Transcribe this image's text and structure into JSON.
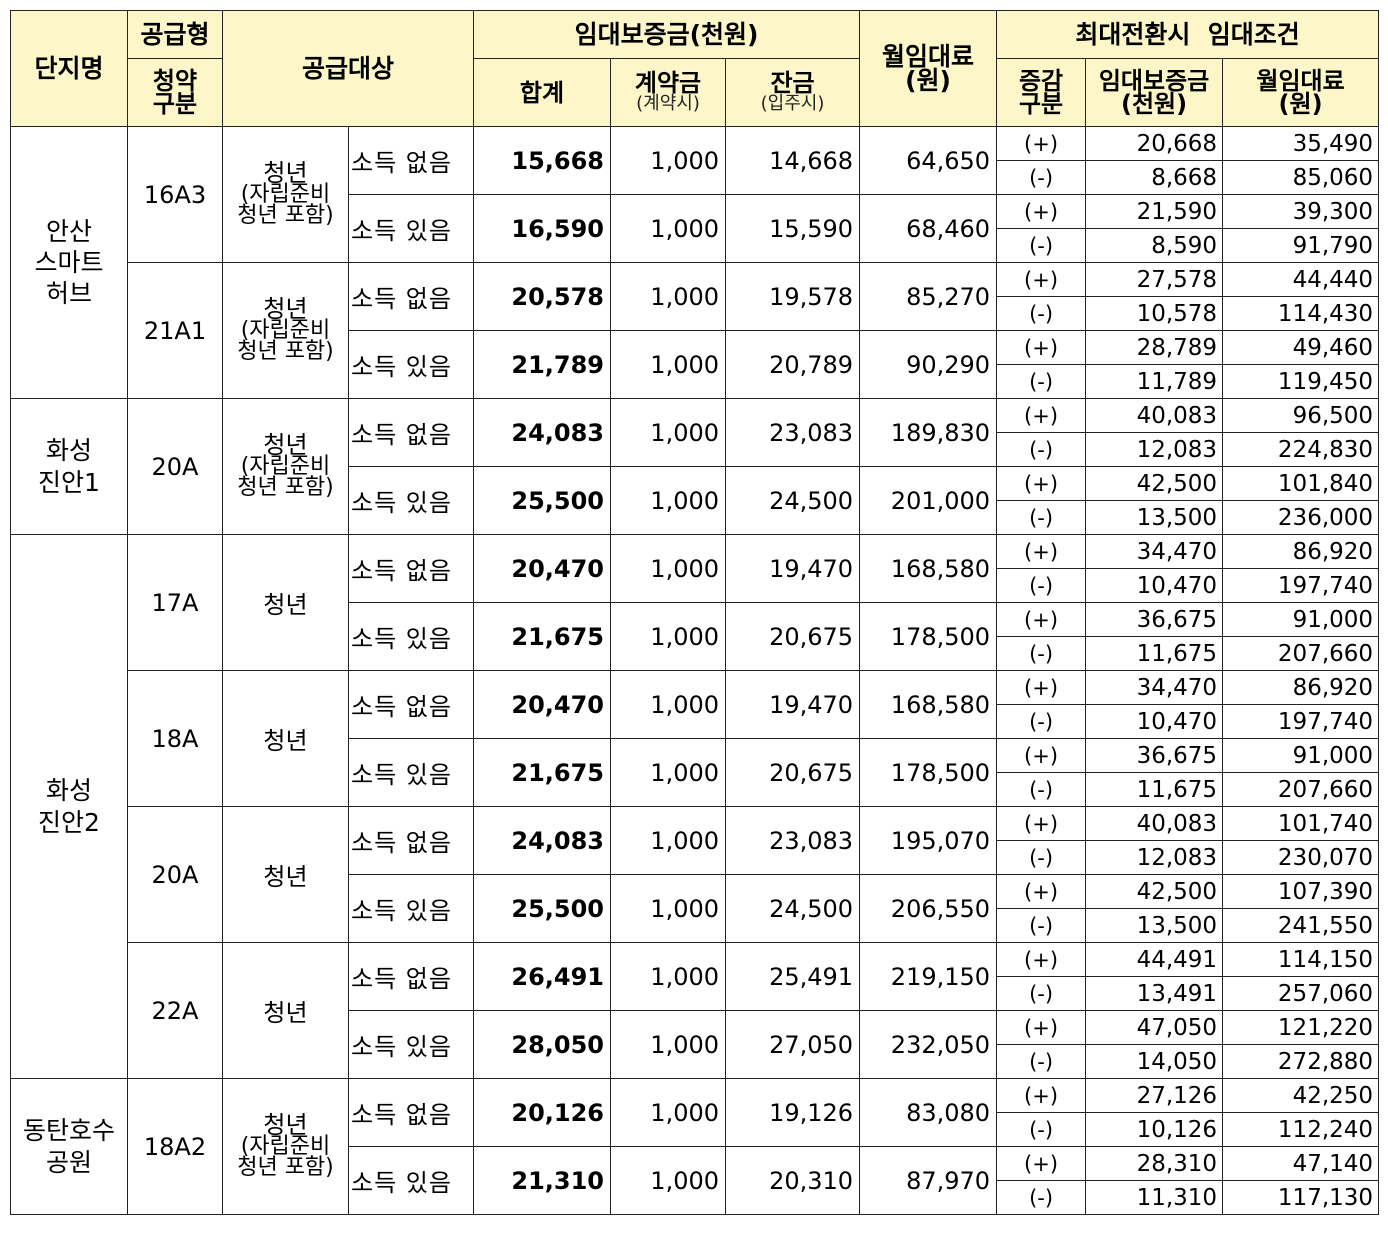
{
  "header": {
    "complex": "단지명",
    "supply_type_top": "공급형",
    "supply_type_bottom": "청약\n구분",
    "target": "공급대상",
    "deposit_group": "임대보증금(천원)",
    "total": "합계",
    "contract": "계약금",
    "contract_note": "(계약시)",
    "balance": "잔금",
    "balance_note": "(입주시)",
    "monthly": "월임대료\n(원)",
    "max_group": "최대전환시  임대조건",
    "change": "증감\n구분",
    "max_deposit": "임대보증금\n(천원)",
    "max_monthly": "월임대료\n(원)"
  },
  "targets": {
    "youth_incl_l1": "청년",
    "youth_incl_l2": "(자립준비",
    "youth_incl_l3": "청년 포함)",
    "youth": "청년"
  },
  "income": {
    "none": "소득 없음",
    "has": "소득 있음"
  },
  "signs": {
    "plus": "(+)",
    "minus": "(-)"
  },
  "complexes": [
    {
      "name": "안산\n스마트\n허브",
      "types": [
        {
          "type": "16A3",
          "target": "incl",
          "rows": [
            {
              "income": "none",
              "total": "15,668",
              "contract": "1,000",
              "balance": "14,668",
              "monthly": "64,650",
              "plus": [
                "20,668",
                "35,490"
              ],
              "minus": [
                "8,668",
                "85,060"
              ]
            },
            {
              "income": "has",
              "total": "16,590",
              "contract": "1,000",
              "balance": "15,590",
              "monthly": "68,460",
              "plus": [
                "21,590",
                "39,300"
              ],
              "minus": [
                "8,590",
                "91,790"
              ]
            }
          ]
        },
        {
          "type": "21A1",
          "target": "incl",
          "rows": [
            {
              "income": "none",
              "total": "20,578",
              "contract": "1,000",
              "balance": "19,578",
              "monthly": "85,270",
              "plus": [
                "27,578",
                "44,440"
              ],
              "minus": [
                "10,578",
                "114,430"
              ]
            },
            {
              "income": "has",
              "total": "21,789",
              "contract": "1,000",
              "balance": "20,789",
              "monthly": "90,290",
              "plus": [
                "28,789",
                "49,460"
              ],
              "minus": [
                "11,789",
                "119,450"
              ]
            }
          ]
        }
      ]
    },
    {
      "name": "화성\n진안1",
      "types": [
        {
          "type": "20A",
          "target": "incl",
          "rows": [
            {
              "income": "none",
              "total": "24,083",
              "contract": "1,000",
              "balance": "23,083",
              "monthly": "189,830",
              "plus": [
                "40,083",
                "96,500"
              ],
              "minus": [
                "12,083",
                "224,830"
              ]
            },
            {
              "income": "has",
              "total": "25,500",
              "contract": "1,000",
              "balance": "24,500",
              "monthly": "201,000",
              "plus": [
                "42,500",
                "101,840"
              ],
              "minus": [
                "13,500",
                "236,000"
              ]
            }
          ]
        }
      ]
    },
    {
      "name": "화성\n진안2",
      "types": [
        {
          "type": "17A",
          "target": "youth",
          "rows": [
            {
              "income": "none",
              "total": "20,470",
              "contract": "1,000",
              "balance": "19,470",
              "monthly": "168,580",
              "plus": [
                "34,470",
                "86,920"
              ],
              "minus": [
                "10,470",
                "197,740"
              ]
            },
            {
              "income": "has",
              "total": "21,675",
              "contract": "1,000",
              "balance": "20,675",
              "monthly": "178,500",
              "plus": [
                "36,675",
                "91,000"
              ],
              "minus": [
                "11,675",
                "207,660"
              ]
            }
          ]
        },
        {
          "type": "18A",
          "target": "youth",
          "rows": [
            {
              "income": "none",
              "total": "20,470",
              "contract": "1,000",
              "balance": "19,470",
              "monthly": "168,580",
              "plus": [
                "34,470",
                "86,920"
              ],
              "minus": [
                "10,470",
                "197,740"
              ]
            },
            {
              "income": "has",
              "total": "21,675",
              "contract": "1,000",
              "balance": "20,675",
              "monthly": "178,500",
              "plus": [
                "36,675",
                "91,000"
              ],
              "minus": [
                "11,675",
                "207,660"
              ]
            }
          ]
        },
        {
          "type": "20A",
          "target": "youth",
          "rows": [
            {
              "income": "none",
              "total": "24,083",
              "contract": "1,000",
              "balance": "23,083",
              "monthly": "195,070",
              "plus": [
                "40,083",
                "101,740"
              ],
              "minus": [
                "12,083",
                "230,070"
              ]
            },
            {
              "income": "has",
              "total": "25,500",
              "contract": "1,000",
              "balance": "24,500",
              "monthly": "206,550",
              "plus": [
                "42,500",
                "107,390"
              ],
              "minus": [
                "13,500",
                "241,550"
              ]
            }
          ]
        },
        {
          "type": "22A",
          "target": "youth",
          "rows": [
            {
              "income": "none",
              "total": "26,491",
              "contract": "1,000",
              "balance": "25,491",
              "monthly": "219,150",
              "plus": [
                "44,491",
                "114,150"
              ],
              "minus": [
                "13,491",
                "257,060"
              ]
            },
            {
              "income": "has",
              "total": "28,050",
              "contract": "1,000",
              "balance": "27,050",
              "monthly": "232,050",
              "plus": [
                "47,050",
                "121,220"
              ],
              "minus": [
                "14,050",
                "272,880"
              ]
            }
          ]
        }
      ]
    },
    {
      "name": "동탄호수\n공원",
      "types": [
        {
          "type": "18A2",
          "target": "incl",
          "rows": [
            {
              "income": "none",
              "total": "20,126",
              "contract": "1,000",
              "balance": "19,126",
              "monthly": "83,080",
              "plus": [
                "27,126",
                "42,250"
              ],
              "minus": [
                "10,126",
                "112,240"
              ]
            },
            {
              "income": "has",
              "total": "21,310",
              "contract": "1,000",
              "balance": "20,310",
              "monthly": "87,970",
              "plus": [
                "28,310",
                "47,140"
              ],
              "minus": [
                "11,310",
                "117,130"
              ]
            }
          ]
        }
      ]
    }
  ],
  "colors": {
    "header_bg": "#fdf6c8",
    "border": "#222222"
  }
}
